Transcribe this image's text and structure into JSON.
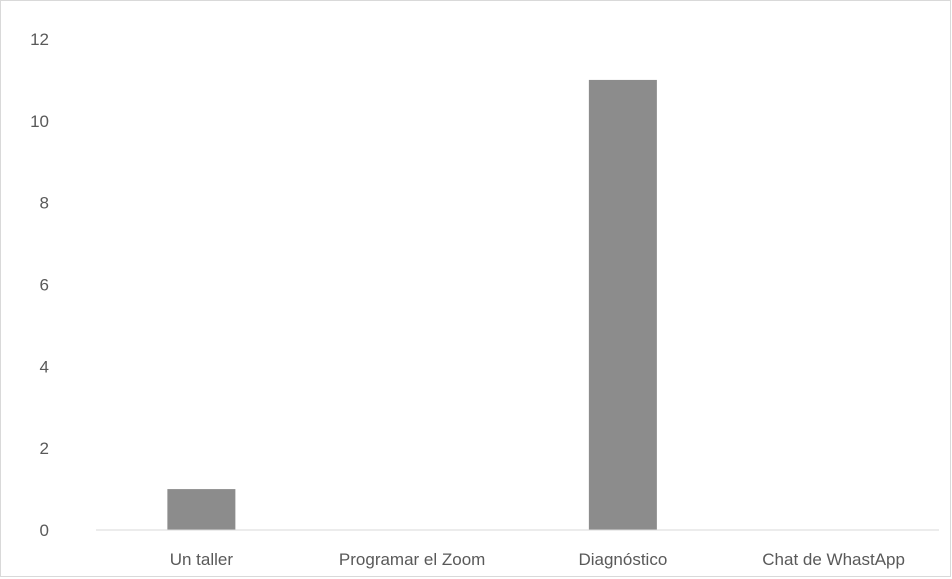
{
  "chart_data": {
    "type": "bar",
    "title": "",
    "xlabel": "",
    "ylabel": "",
    "categories": [
      "Un taller",
      "Programar el Zoom",
      "Diagnóstico",
      "Chat de WhastApp"
    ],
    "values": [
      1,
      0,
      11,
      0
    ],
    "ylim": [
      0,
      12
    ],
    "y_ticks": [
      0,
      2,
      4,
      6,
      8,
      10,
      12
    ],
    "grid": false,
    "legend": "none",
    "colors": {
      "bar": "#8c8c8c",
      "axis": "#d9d9d9",
      "text": "#595959"
    }
  }
}
